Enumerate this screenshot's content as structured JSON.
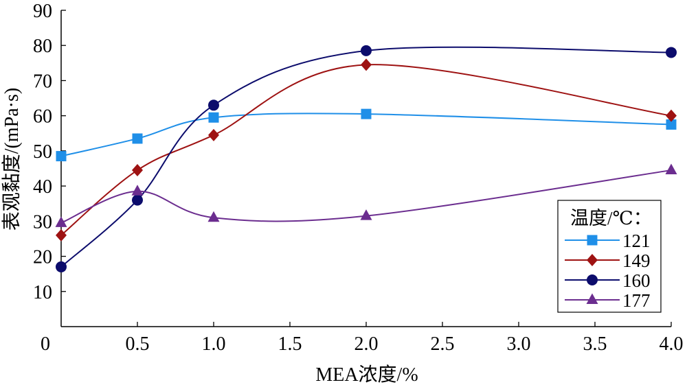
{
  "chart_data": {
    "type": "line",
    "xlabel": "MEA浓度/%",
    "ylabel": "表观黏度/(mPa·s)",
    "xlim": [
      0,
      4.0
    ],
    "ylim": [
      0,
      90
    ],
    "x_ticks": [
      "0",
      "0.5",
      "1.0",
      "1.5",
      "2.0",
      "2.5",
      "3.0",
      "3.5",
      "4.0"
    ],
    "y_ticks": [
      "10",
      "20",
      "30",
      "40",
      "50",
      "60",
      "70",
      "80",
      "90"
    ],
    "grid": false,
    "smooth": true,
    "legend": {
      "title": "温度/℃：",
      "placement": "bottom-right"
    },
    "series": [
      {
        "name": "121",
        "color": "#1f8fe8",
        "marker": "square",
        "x": [
          0,
          0.5,
          1.0,
          2.0,
          4.0
        ],
        "y": [
          48.5,
          53.5,
          59.5,
          60.5,
          57.5
        ]
      },
      {
        "name": "149",
        "color": "#9e1212",
        "marker": "diamond",
        "x": [
          0,
          0.5,
          1.0,
          2.0,
          4.0
        ],
        "y": [
          26,
          44.5,
          54.5,
          74.5,
          60
        ]
      },
      {
        "name": "160",
        "color": "#0c0c6c",
        "marker": "circle",
        "x": [
          0,
          0.5,
          1.0,
          2.0,
          4.0
        ],
        "y": [
          17,
          36,
          63,
          78.5,
          78
        ]
      },
      {
        "name": "177",
        "color": "#6b2d8f",
        "marker": "triangle",
        "x": [
          0,
          0.5,
          1.0,
          2.0,
          4.0
        ],
        "y": [
          29.5,
          38.5,
          31,
          31.5,
          44.5
        ]
      }
    ]
  }
}
